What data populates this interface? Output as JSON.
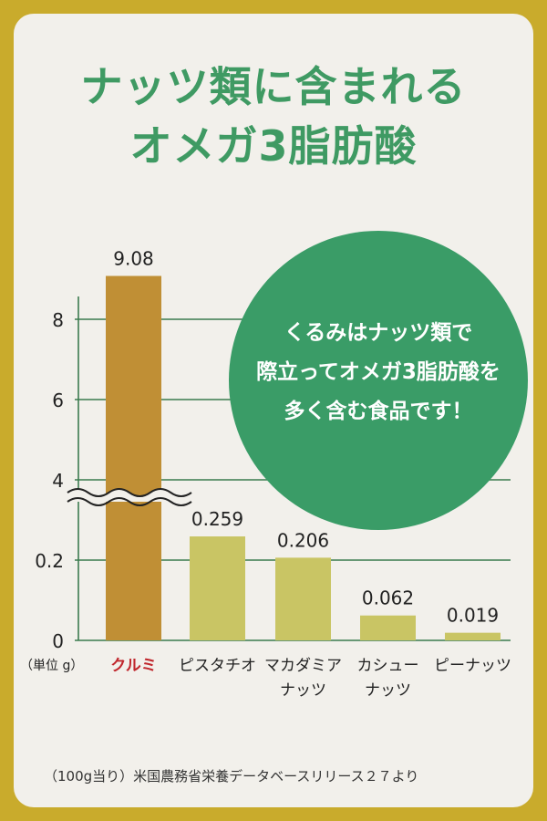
{
  "title": {
    "line1": "ナッツ類に含まれる",
    "line2": "オメガ3脂肪酸"
  },
  "callout": {
    "line1": "くるみはナッツ類で",
    "line2": "際立ってオメガ3脂肪酸を",
    "line3": "多く含む食品です！"
  },
  "footnote": "（100g当り）米国農務省栄養データベースリリース２７より",
  "colors": {
    "frame": "#c9ab2c",
    "highlight_bar": "#c08f35",
    "other_bars": "#c9c564",
    "grid": "#3b7a4e",
    "title": "#3f9a63",
    "callout": "#3a9c67",
    "highlight_label": "#c0272d"
  },
  "chart_data": {
    "type": "bar",
    "unit_label": "（単位 g）",
    "y_axis_break": true,
    "upper_segment": {
      "ticks": [
        "8",
        "6",
        "4"
      ],
      "tick_values": [
        8,
        6,
        4
      ]
    },
    "lower_segment": {
      "ticks": [
        "0.2",
        "0"
      ],
      "tick_values": [
        0.2,
        0
      ]
    },
    "categories": [
      {
        "label": [
          "クルミ"
        ],
        "highlight": true
      },
      {
        "label": [
          "ピスタチオ"
        ],
        "highlight": false
      },
      {
        "label": [
          "マカダミア",
          "ナッツ"
        ],
        "highlight": false
      },
      {
        "label": [
          "カシュー",
          "ナッツ"
        ],
        "highlight": false
      },
      {
        "label": [
          "ピーナッツ"
        ],
        "highlight": false
      }
    ],
    "values": [
      9.08,
      0.259,
      0.206,
      0.062,
      0.019
    ],
    "value_labels": [
      "9.08",
      "0.259",
      "0.206",
      "0.062",
      "0.019"
    ]
  }
}
